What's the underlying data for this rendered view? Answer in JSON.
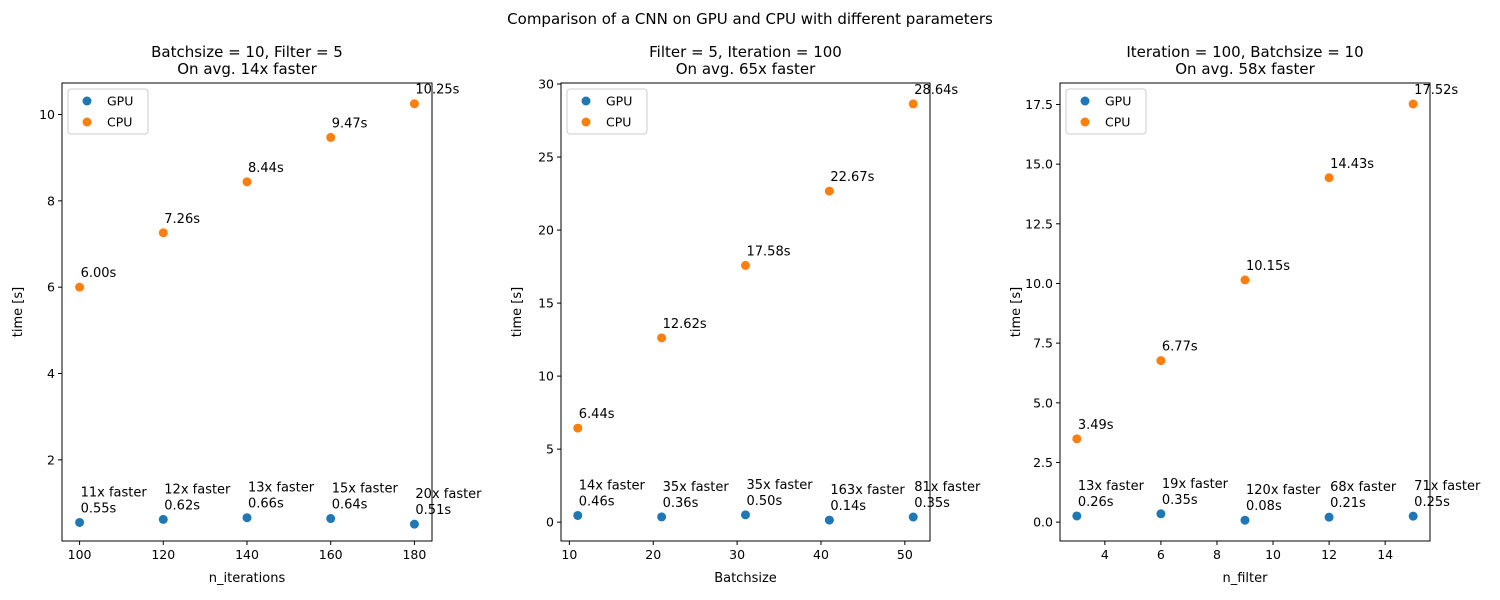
{
  "figure": {
    "suptitle": "Comparison of a CNN on GPU and CPU with different parameters"
  },
  "colors": {
    "gpu": "#1f77b4",
    "cpu": "#ff7f0e"
  },
  "chart_data": [
    {
      "type": "scatter",
      "title": "Batchsize = 10, Filter = 5",
      "subtitle": "On avg. 14x faster",
      "xlabel": "n_iterations",
      "ylabel": "time [s]",
      "xlim": [
        95.8,
        184.2
      ],
      "ylim": [
        0.12,
        10.73
      ],
      "xticks": [
        100,
        120,
        140,
        160,
        180
      ],
      "yticks": [
        2,
        4,
        6,
        8,
        10
      ],
      "legend": "top-left",
      "series": [
        {
          "name": "GPU",
          "x": [
            100,
            120,
            140,
            160,
            180
          ],
          "y": [
            0.55,
            0.62,
            0.66,
            0.64,
            0.51
          ],
          "labels": [
            "11x faster\n0.55s",
            "12x faster\n0.62s",
            "13x faster\n0.66s",
            "15x faster\n0.64s",
            "20x faster\n0.51s"
          ]
        },
        {
          "name": "CPU",
          "x": [
            100,
            120,
            140,
            160,
            180
          ],
          "y": [
            6.0,
            7.26,
            8.44,
            9.47,
            10.25
          ],
          "labels": [
            "6.00s",
            "7.26s",
            "8.44s",
            "9.47s",
            "10.25s"
          ]
        }
      ]
    },
    {
      "type": "scatter",
      "title": "Filter = 5, Iteration = 100",
      "subtitle": "On avg. 65x faster",
      "xlabel": "Batchsize",
      "ylabel": "time [s]",
      "xlim": [
        9.0,
        53.0
      ],
      "ylim": [
        -1.29,
        30.07
      ],
      "xticks": [
        10,
        20,
        30,
        40,
        50
      ],
      "yticks": [
        0,
        5,
        10,
        15,
        20,
        25,
        30
      ],
      "legend": "top-left",
      "series": [
        {
          "name": "GPU",
          "x": [
            11,
            21,
            31,
            41,
            51
          ],
          "y": [
            0.46,
            0.36,
            0.5,
            0.14,
            0.35
          ],
          "labels": [
            "14x faster\n0.46s",
            "35x faster\n0.36s",
            "35x faster\n0.50s",
            "163x faster\n0.14s",
            "81x faster\n0.35s"
          ]
        },
        {
          "name": "CPU",
          "x": [
            11,
            21,
            31,
            41,
            51
          ],
          "y": [
            6.44,
            12.62,
            17.58,
            22.67,
            28.64
          ],
          "labels": [
            "6.44s",
            "12.62s",
            "17.58s",
            "22.67s",
            "28.64s"
          ]
        }
      ]
    },
    {
      "type": "scatter",
      "title": "Iteration = 100, Batchsize = 10",
      "subtitle": "On avg. 58x faster",
      "xlabel": "n_filter",
      "ylabel": "time [s]",
      "xlim": [
        2.4,
        15.6
      ],
      "ylim": [
        -0.79,
        18.4
      ],
      "xticks": [
        4,
        6,
        8,
        10,
        12,
        14
      ],
      "yticks": [
        0.0,
        2.5,
        5.0,
        7.5,
        10.0,
        12.5,
        15.0,
        17.5
      ],
      "legend": "top-left",
      "series": [
        {
          "name": "GPU",
          "x": [
            3,
            6,
            9,
            12,
            15
          ],
          "y": [
            0.26,
            0.35,
            0.08,
            0.21,
            0.25
          ],
          "labels": [
            "13x faster\n0.26s",
            "19x faster\n0.35s",
            "120x faster\n0.08s",
            "68x faster\n0.21s",
            "71x faster\n0.25s"
          ]
        },
        {
          "name": "CPU",
          "x": [
            3,
            6,
            9,
            12,
            15
          ],
          "y": [
            3.49,
            6.77,
            10.15,
            14.43,
            17.52
          ],
          "labels": [
            "3.49s",
            "6.77s",
            "10.15s",
            "14.43s",
            "17.52s"
          ]
        }
      ]
    }
  ]
}
